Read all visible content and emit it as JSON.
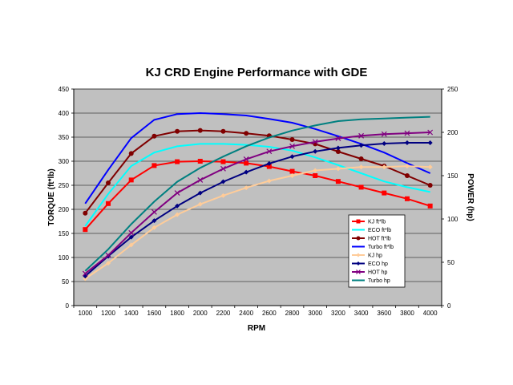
{
  "chart_data": {
    "type": "line",
    "title": "KJ CRD Engine Performance with GDE",
    "xlabel": "RPM",
    "ylabel_left": "TORQUE (ft*lb)",
    "ylabel_right": "POWER (hp)",
    "x": [
      1000,
      1200,
      1400,
      1600,
      1800,
      2000,
      2200,
      2400,
      2600,
      2800,
      3000,
      3200,
      3400,
      3600,
      3800,
      4000
    ],
    "xticks": [
      "1000",
      "1200",
      "1400",
      "1600",
      "1800",
      "2000",
      "2200",
      "2400",
      "2600",
      "2800",
      "3000",
      "3200",
      "3400",
      "3600",
      "3800",
      "4000"
    ],
    "ylim_left": [
      0,
      450
    ],
    "ylim_right": [
      0,
      250
    ],
    "yticks_left": [
      "0",
      "50",
      "100",
      "150",
      "200",
      "250",
      "300",
      "350",
      "400",
      "450"
    ],
    "yticks_right": [
      "0",
      "50",
      "100",
      "150",
      "200",
      "250"
    ],
    "grid": true,
    "plot_background": "#c0c0c0",
    "legend_position": "right",
    "series": [
      {
        "name": "KJ  ft*lb",
        "axis": "left",
        "color": "#ff0000",
        "marker": "square",
        "values": [
          158,
          212,
          261,
          291,
          299,
          300,
          299,
          296,
          289,
          279,
          270,
          258,
          246,
          234,
          222,
          207
        ]
      },
      {
        "name": "ECO  ft*lb",
        "axis": "left",
        "color": "#00ffff",
        "marker": "none",
        "values": [
          165,
          232,
          290,
          318,
          331,
          336,
          336,
          334,
          330,
          322,
          308,
          292,
          275,
          258,
          246,
          236
        ]
      },
      {
        "name": "HOT  ft*lb",
        "axis": "left",
        "color": "#800000",
        "marker": "circle",
        "values": [
          192,
          255,
          316,
          352,
          362,
          364,
          362,
          358,
          353,
          345,
          336,
          320,
          305,
          290,
          270,
          250
        ]
      },
      {
        "name": "Turbo  ft*lb",
        "axis": "left",
        "color": "#0000ff",
        "marker": "none",
        "values": [
          212,
          282,
          348,
          386,
          398,
          400,
          398,
          395,
          388,
          380,
          367,
          352,
          336,
          318,
          296,
          275
        ]
      },
      {
        "name": "KJ  hp",
        "axis": "right",
        "color": "#ffcc99",
        "marker": "diamond",
        "values": [
          31,
          49,
          70,
          90,
          105,
          117,
          127,
          136,
          144,
          150,
          156,
          158,
          160,
          160,
          161,
          160
        ]
      },
      {
        "name": "ECO  hp",
        "axis": "right",
        "color": "#000080",
        "marker": "diamond",
        "values": [
          34,
          57,
          79,
          98,
          115,
          130,
          143,
          154,
          164,
          172,
          178,
          182,
          185,
          187,
          188,
          188
        ]
      },
      {
        "name": "HOT  hp",
        "axis": "right",
        "color": "#800080",
        "marker": "x",
        "values": [
          37,
          58,
          84,
          108,
          130,
          145,
          158,
          169,
          178,
          184,
          189,
          193,
          196,
          198,
          199,
          200
        ]
      },
      {
        "name": "Turbo  hp",
        "axis": "right",
        "color": "#008080",
        "marker": "none",
        "values": [
          40,
          65,
          94,
          120,
          143,
          159,
          172,
          184,
          194,
          202,
          208,
          213,
          215,
          216,
          217,
          218
        ]
      }
    ]
  }
}
